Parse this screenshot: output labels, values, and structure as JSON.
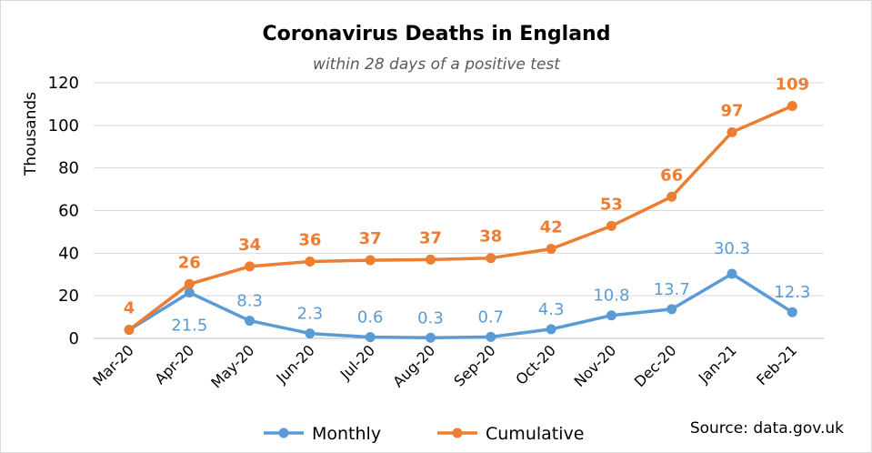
{
  "chart_data": {
    "type": "line",
    "title": "Coronavirus Deaths in England",
    "subtitle": "within 28 days of a positive test",
    "ylabel": "Thousands",
    "xlabel": "",
    "ylim": [
      0,
      120
    ],
    "yticks": [
      0,
      20,
      40,
      60,
      80,
      100,
      120
    ],
    "grid": true,
    "legend_position": "bottom",
    "categories": [
      "Mar-20",
      "Apr-20",
      "May-20",
      "Jun-20",
      "Jul-20",
      "Aug-20",
      "Sep-20",
      "Oct-20",
      "Nov-20",
      "Dec-20",
      "Jan-21",
      "Feb-21"
    ],
    "series": [
      {
        "name": "Monthly",
        "color": "#5b9bd5",
        "values": [
          4,
          21.5,
          8.3,
          2.3,
          0.6,
          0.3,
          0.7,
          4.3,
          10.8,
          13.7,
          30.3,
          12.3
        ],
        "labels": [
          "",
          "21.5",
          "8.3",
          "2.3",
          "0.6",
          "0.3",
          "0.7",
          "4.3",
          "10.8",
          "13.7",
          "30.3",
          "12.3"
        ]
      },
      {
        "name": "Cumulative",
        "color": "#ed7d31",
        "values": [
          4,
          25.5,
          33.8,
          36.1,
          36.7,
          37,
          37.7,
          42,
          52.8,
          66.5,
          96.8,
          109.1
        ],
        "labels": [
          "4",
          "26",
          "34",
          "36",
          "37",
          "37",
          "38",
          "42",
          "53",
          "66",
          "97",
          "109"
        ]
      }
    ],
    "source": "Source: data.gov.uk"
  }
}
